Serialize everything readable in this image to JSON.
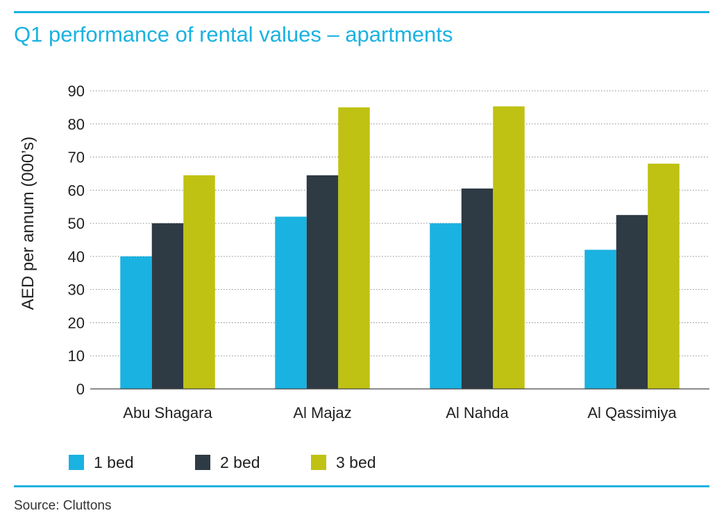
{
  "title": "Q1 performance of rental values – apartments",
  "source": "Source: Cluttons",
  "chart_data": {
    "type": "bar",
    "title": "Q1 performance of rental values – apartments",
    "xlabel": "",
    "ylabel": "AED per annum (000’s)",
    "ylim": [
      0,
      90
    ],
    "yticks": [
      0,
      10,
      20,
      30,
      40,
      50,
      60,
      70,
      80,
      90
    ],
    "grid": true,
    "legend_position": "bottom",
    "categories": [
      "Abu Shagara",
      "Al Majaz",
      "Al Nahda",
      "Al Qassimiya"
    ],
    "series": [
      {
        "name": "1 bed",
        "color": "#1ab2e0",
        "values": [
          40,
          52,
          50,
          42
        ]
      },
      {
        "name": "2 bed",
        "color": "#2e3a44",
        "values": [
          50,
          64.5,
          60.5,
          52.5
        ]
      },
      {
        "name": "3 bed",
        "color": "#bfc212",
        "values": [
          64.5,
          85,
          85.3,
          68
        ]
      }
    ]
  }
}
